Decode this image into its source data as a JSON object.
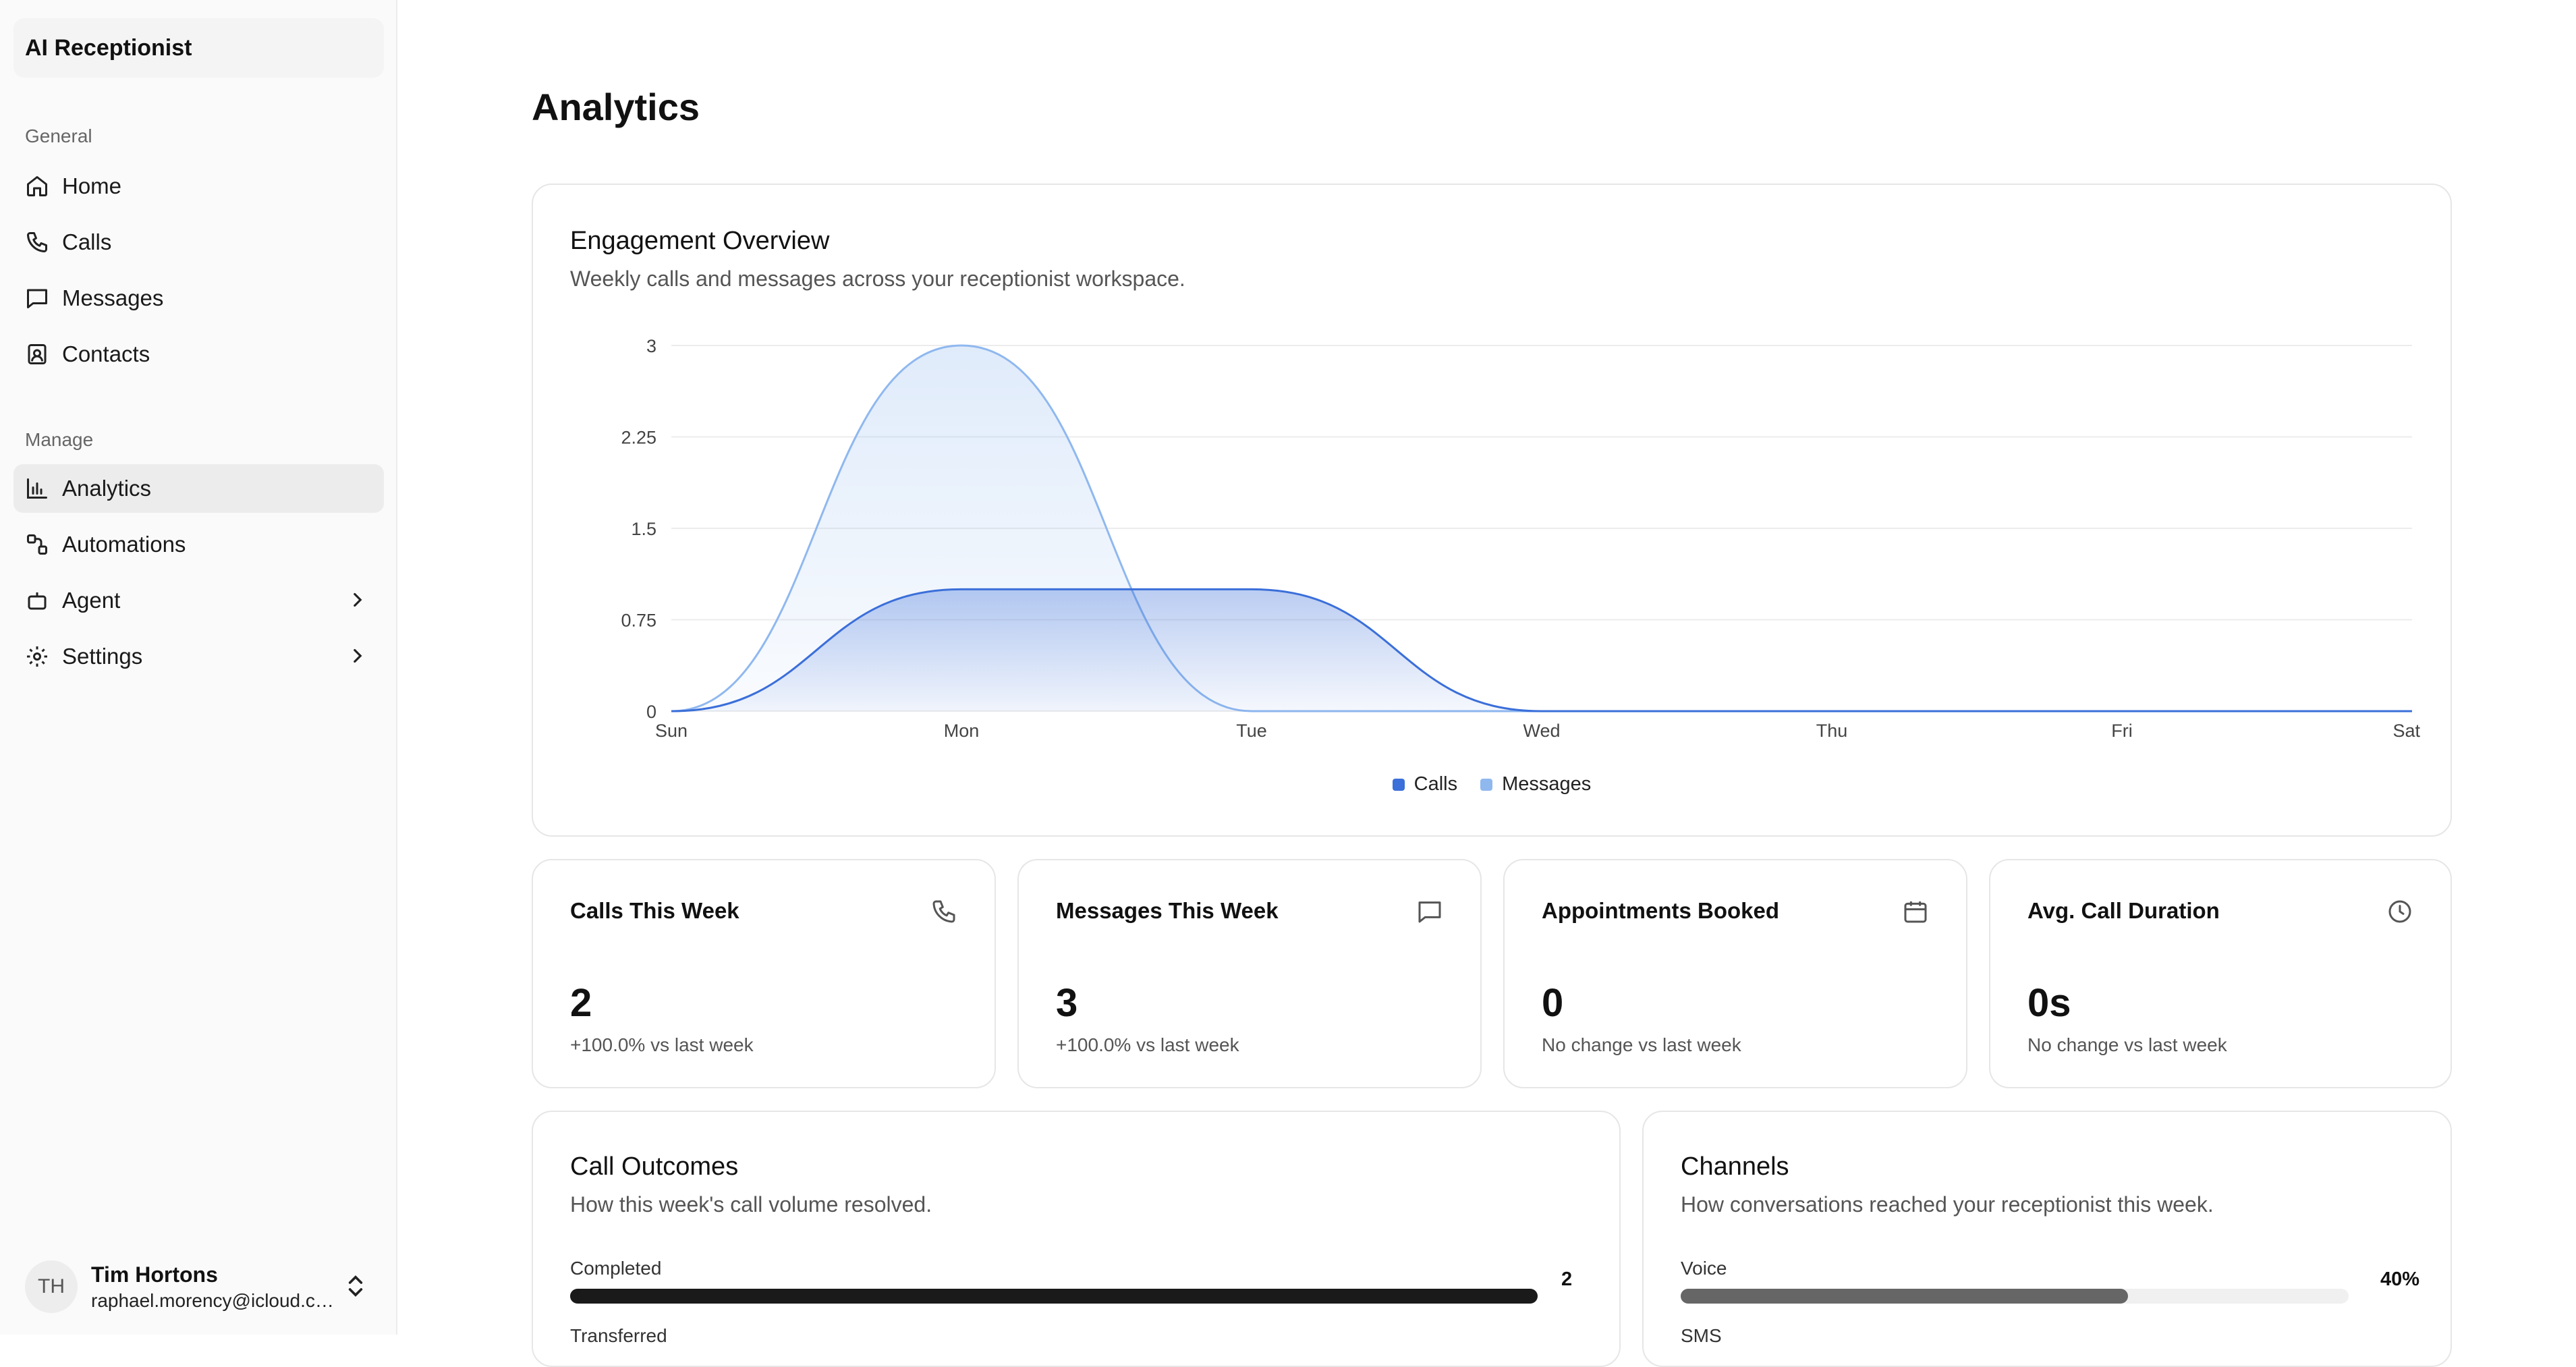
{
  "app": {
    "title": "AI Receptionist"
  },
  "sidebar": {
    "groups": [
      {
        "label": "General"
      },
      {
        "label": "Manage"
      }
    ],
    "items": [
      {
        "label": "Home",
        "icon": "home-icon"
      },
      {
        "label": "Calls",
        "icon": "phone-icon"
      },
      {
        "label": "Messages",
        "icon": "message-icon"
      },
      {
        "label": "Contacts",
        "icon": "contacts-icon"
      },
      {
        "label": "Analytics",
        "icon": "bar-chart-icon",
        "active": true
      },
      {
        "label": "Automations",
        "icon": "automations-icon"
      },
      {
        "label": "Agent",
        "icon": "bot-icon",
        "has_submenu": true
      },
      {
        "label": "Settings",
        "icon": "gear-icon",
        "has_submenu": true
      }
    ],
    "user": {
      "initials": "TH",
      "name": "Tim Hortons",
      "email": "raphael.morency@icloud.co..."
    }
  },
  "page": {
    "title": "Analytics"
  },
  "engagement": {
    "title": "Engagement Overview",
    "subtitle": "Weekly calls and messages across your receptionist workspace."
  },
  "chart_data": {
    "type": "area",
    "x": [
      "Sun",
      "Mon",
      "Tue",
      "Wed",
      "Thu",
      "Fri",
      "Sat"
    ],
    "y_ticks": [
      "0",
      "0.75",
      "1.5",
      "2.25",
      "3"
    ],
    "ylim": [
      0,
      3
    ],
    "grid": true,
    "legend_position": "bottom",
    "series": [
      {
        "name": "Calls",
        "values": [
          0,
          1,
          1,
          0,
          0,
          0,
          0
        ],
        "color": "#3b6fd9"
      },
      {
        "name": "Messages",
        "values": [
          0,
          3,
          0,
          0,
          0,
          0,
          0
        ],
        "color": "#8fb8ef"
      }
    ]
  },
  "stats": [
    {
      "title": "Calls This Week",
      "icon": "phone-icon",
      "value": "2",
      "change": "+100.0% vs last week"
    },
    {
      "title": "Messages This Week",
      "icon": "message-icon",
      "value": "3",
      "change": "+100.0% vs last week"
    },
    {
      "title": "Appointments Booked",
      "icon": "calendar-icon",
      "value": "0",
      "change": "No change vs last week"
    },
    {
      "title": "Avg. Call Duration",
      "icon": "clock-icon",
      "value": "0s",
      "change": "No change vs last week"
    }
  ],
  "outcomes": {
    "title": "Call Outcomes",
    "subtitle": "How this week's call volume resolved.",
    "rows": [
      {
        "label": "Completed",
        "value": "2",
        "fraction": 1.0,
        "color": "#1a1a1a"
      },
      {
        "label": "Transferred"
      }
    ]
  },
  "channels": {
    "title": "Channels",
    "subtitle": "How conversations reached your receptionist this week.",
    "rows": [
      {
        "label": "Voice",
        "value": "40%",
        "fraction": 0.67,
        "color": "#666666"
      },
      {
        "label": "SMS"
      }
    ]
  }
}
